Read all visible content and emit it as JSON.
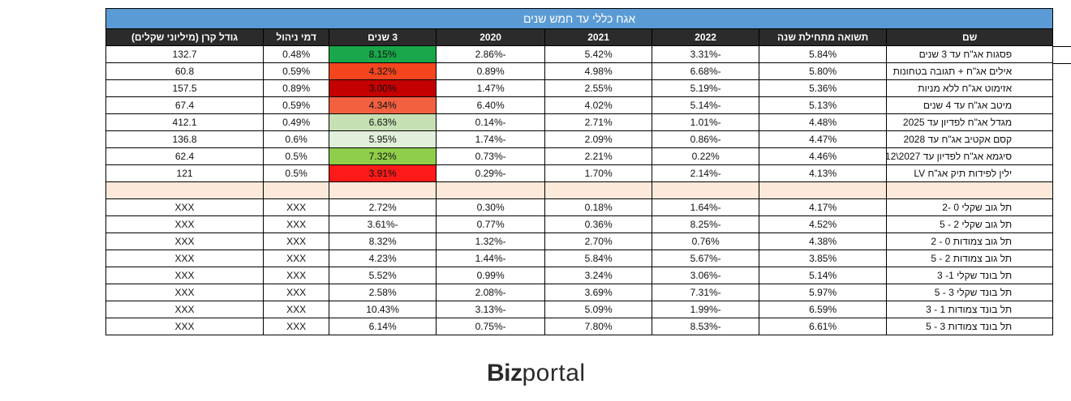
{
  "title": "אגח כללי עד חמש שנים",
  "headers": [
    "שם",
    "תשואה מתחילת שנה",
    "2022",
    "2021",
    "2020",
    "3 שנים",
    "דמי ניהול",
    "גודל קרן (מיליוני שקלים)"
  ],
  "funds": [
    {
      "name": "פסגות אג\"ח עד 3 שנים",
      "ytd": "5.84%",
      "y2022": "-3.31%",
      "y2021": "5.42%",
      "y2020": "-2.86%",
      "y3": "8.15%",
      "y3_color": "#1aa64a",
      "fee": "0.48%",
      "size": "132.7"
    },
    {
      "name": "אילים אג\"ח + תגובה בטחונות",
      "ytd": "5.80%",
      "y2022": "-6.68%",
      "y2021": "4.98%",
      "y2020": "0.89%",
      "y3": "4.32%",
      "y3_color": "#f4451f",
      "fee": "0.59%",
      "size": "60.8"
    },
    {
      "name": "אזימוט אג\"ח ללא מניות",
      "ytd": "5.36%",
      "y2022": "-5.19%",
      "y2021": "2.55%",
      "y2020": "1.47%",
      "y3": "3.00%",
      "y3_color": "#c40000",
      "fee": "0.89%",
      "size": "157.5"
    },
    {
      "name": "מיטב אג\"ח עד 4 שנים",
      "ytd": "5.13%",
      "y2022": "-5.14%",
      "y2021": "4.02%",
      "y2020": "6.40%",
      "y3": "4.34%",
      "y3_color": "#f26040",
      "fee": "0.59%",
      "size": "67.4"
    },
    {
      "name": "מגדל אג\"ח לפדיון עד 2025",
      "ytd": "4.48%",
      "y2022": "-1.01%",
      "y2021": "2.71%",
      "y2020": "-0.14%",
      "y3": "6.63%",
      "y3_color": "#c6e0b4",
      "fee": "0.49%",
      "size": "412.1"
    },
    {
      "name": "קסם אקטיב אג\"ח עד 2028",
      "ytd": "4.47%",
      "y2022": "-0.86%",
      "y2021": "2.09%",
      "y2020": "-1.74%",
      "y3": "5.95%",
      "y3_color": "#e2efda",
      "fee": "0.6%",
      "size": "136.8"
    },
    {
      "name": "סיגמא אג\"ח לפדיון עד 2027\\12",
      "ytd": "4.46%",
      "y2022": "0.22%",
      "y2021": "2.21%",
      "y2020": "-0.73%",
      "y3": "7.32%",
      "y3_color": "#8fce4a",
      "fee": "0.5%",
      "size": "62.4"
    },
    {
      "name": "ילין לפידות תיק אג\"ח LV",
      "ytd": "4.13%",
      "y2022": "-2.14%",
      "y2021": "1.70%",
      "y2020": "-0.29%",
      "y3": "3.91%",
      "y3_color": "#ff1a1a",
      "fee": "0.5%",
      "size": "121"
    }
  ],
  "indices": [
    {
      "name": "תל גוב שקלי 0 -2",
      "ytd": "4.17%",
      "y2022": "-1.64%",
      "y2021": "0.18%",
      "y2020": "0.30%",
      "y3": "2.72%",
      "fee": "XXX",
      "size": "XXX"
    },
    {
      "name": "תל גוב שקלי 2 - 5",
      "ytd": "4.52%",
      "y2022": "-8.25%",
      "y2021": "0.36%",
      "y2020": "0.77%",
      "y3": "-3.61%",
      "fee": "XXX",
      "size": "XXX"
    },
    {
      "name": "תל גוב צמודות 0 - 2",
      "ytd": "4.38%",
      "y2022": "0.76%",
      "y2021": "2.70%",
      "y2020": "-1.32%",
      "y3": "8.32%",
      "fee": "XXX",
      "size": "XXX"
    },
    {
      "name": "תל גוב צמודות 2 - 5",
      "ytd": "3.85%",
      "y2022": "-5.67%",
      "y2021": "5.84%",
      "y2020": "-1.44%",
      "y3": "4.23%",
      "fee": "XXX",
      "size": "XXX"
    },
    {
      "name": "תל בונד שקלי 1- 3",
      "ytd": "5.14%",
      "y2022": "-3.06%",
      "y2021": "3.24%",
      "y2020": "0.99%",
      "y3": "5.52%",
      "fee": "XXX",
      "size": "XXX"
    },
    {
      "name": "תל בונד שקלי 3 - 5",
      "ytd": "5.97%",
      "y2022": "-7.31%",
      "y2021": "3.69%",
      "y2020": "-2.08%",
      "y3": "2.58%",
      "fee": "XXX",
      "size": "XXX"
    },
    {
      "name": "תל בונד צמודות 1 - 3",
      "ytd": "6.59%",
      "y2022": "-1.99%",
      "y2021": "5.09%",
      "y2020": "-3.13%",
      "y3": "10.43%",
      "fee": "XXX",
      "size": "XXX"
    },
    {
      "name": "תל בונד צמודות 3 - 5",
      "ytd": "6.61%",
      "y2022": "-8.53%",
      "y2021": "7.80%",
      "y2020": "-0.75%",
      "y3": "6.14%",
      "fee": "XXX",
      "size": "XXX"
    }
  ],
  "logo": {
    "bold": "Biz",
    "light": "portal"
  }
}
